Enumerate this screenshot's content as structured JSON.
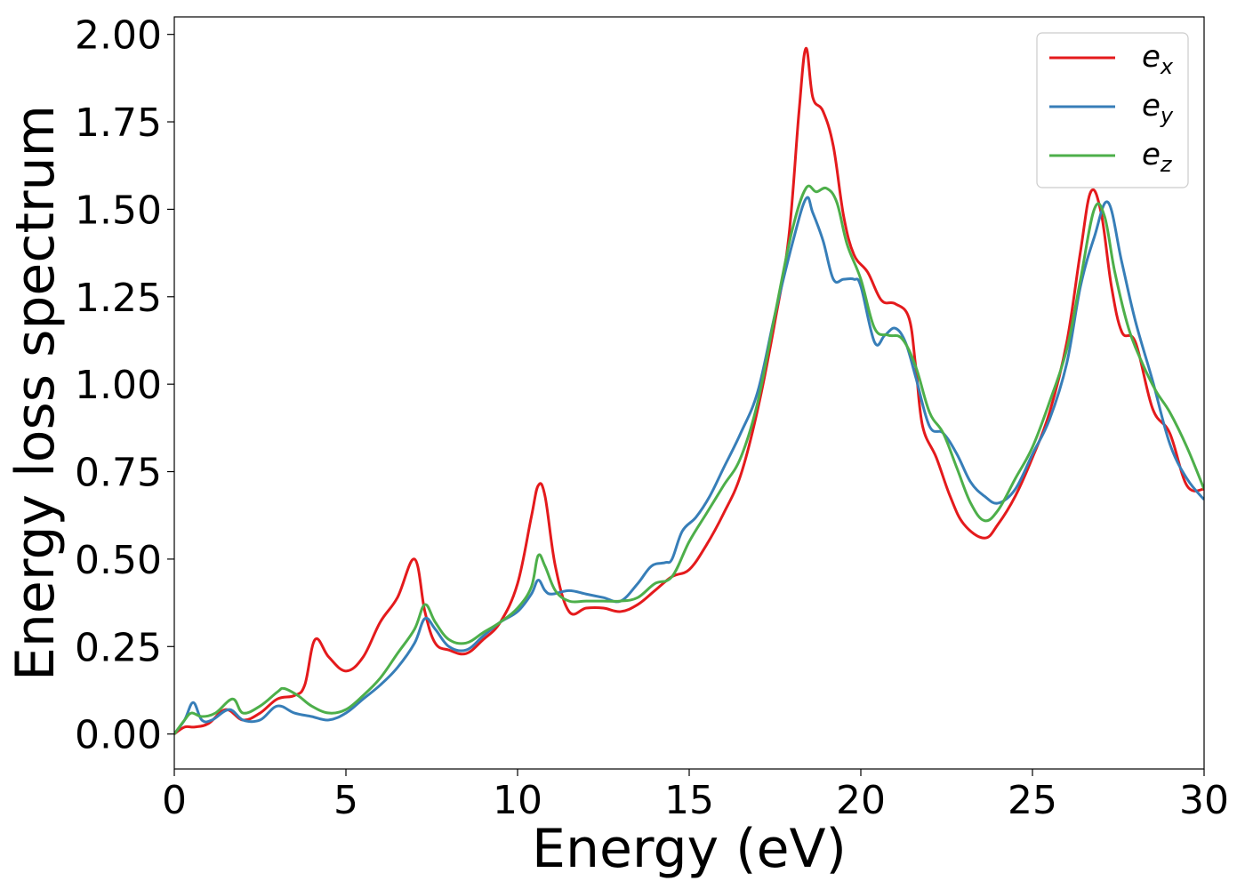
{
  "chart_data": {
    "type": "line",
    "title": "",
    "xlabel": "Energy (eV)",
    "ylabel": "Energy loss spectrum",
    "xlim": [
      0,
      30
    ],
    "ylim": [
      -0.1,
      2.05
    ],
    "xticks": [
      0,
      5,
      10,
      15,
      20,
      25,
      30
    ],
    "xtick_labels": [
      "0",
      "5",
      "10",
      "15",
      "20",
      "25",
      "30"
    ],
    "yticks": [
      0.0,
      0.25,
      0.5,
      0.75,
      1.0,
      1.25,
      1.5,
      1.75,
      2.0
    ],
    "ytick_labels": [
      "0.00",
      "0.25",
      "0.50",
      "0.75",
      "1.00",
      "1.25",
      "1.50",
      "1.75",
      "2.00"
    ],
    "grid": false,
    "legend_position": "top-right",
    "series": [
      {
        "name": "e_x",
        "legend_base": "e",
        "legend_sub": "x",
        "color": "#e41a1c",
        "x": [
          0,
          0.3,
          0.6,
          1.0,
          1.5,
          2.0,
          2.5,
          3.0,
          3.5,
          3.8,
          4.1,
          4.5,
          5.0,
          5.5,
          6.0,
          6.5,
          7.0,
          7.3,
          7.6,
          8.0,
          8.5,
          9.0,
          9.5,
          10.0,
          10.4,
          10.6,
          10.8,
          11.1,
          11.5,
          12.0,
          12.5,
          13.0,
          13.5,
          14.0,
          14.5,
          15.0,
          15.5,
          16.0,
          16.5,
          17.0,
          17.5,
          17.9,
          18.2,
          18.4,
          18.6,
          18.9,
          19.2,
          19.5,
          19.8,
          20.2,
          20.6,
          21.0,
          21.4,
          21.6,
          21.8,
          22.2,
          22.6,
          23.0,
          23.6,
          24.0,
          24.5,
          25.0,
          25.5,
          26.0,
          26.4,
          26.7,
          27.0,
          27.3,
          27.6,
          28.0,
          28.5,
          29.0,
          29.5,
          30.0
        ],
        "y": [
          0.0,
          0.02,
          0.02,
          0.03,
          0.07,
          0.04,
          0.06,
          0.1,
          0.11,
          0.14,
          0.27,
          0.22,
          0.18,
          0.22,
          0.32,
          0.39,
          0.5,
          0.35,
          0.26,
          0.24,
          0.23,
          0.27,
          0.32,
          0.43,
          0.62,
          0.71,
          0.68,
          0.48,
          0.35,
          0.36,
          0.36,
          0.35,
          0.37,
          0.41,
          0.45,
          0.47,
          0.54,
          0.63,
          0.74,
          0.93,
          1.18,
          1.42,
          1.78,
          1.96,
          1.82,
          1.78,
          1.68,
          1.48,
          1.37,
          1.32,
          1.24,
          1.23,
          1.19,
          1.05,
          0.88,
          0.79,
          0.68,
          0.6,
          0.56,
          0.6,
          0.68,
          0.79,
          0.92,
          1.12,
          1.38,
          1.55,
          1.49,
          1.28,
          1.15,
          1.12,
          0.93,
          0.86,
          0.71,
          0.7
        ]
      },
      {
        "name": "e_y",
        "legend_base": "e",
        "legend_sub": "y",
        "color": "#377eb8",
        "x": [
          0,
          0.3,
          0.55,
          0.8,
          1.1,
          1.6,
          2.0,
          2.5,
          3.0,
          3.5,
          4.0,
          4.5,
          5.0,
          5.5,
          6.0,
          6.5,
          7.0,
          7.3,
          7.6,
          8.0,
          8.5,
          9.0,
          9.5,
          10.0,
          10.4,
          10.6,
          10.8,
          11.0,
          11.5,
          12.0,
          12.5,
          13.0,
          13.5,
          13.9,
          14.3,
          14.5,
          14.8,
          15.2,
          15.6,
          16.0,
          16.5,
          17.0,
          17.5,
          18.0,
          18.4,
          18.6,
          18.9,
          19.2,
          19.5,
          19.8,
          20.0,
          20.4,
          20.7,
          21.0,
          21.3,
          21.6,
          22.0,
          22.4,
          22.8,
          23.2,
          23.6,
          24.0,
          24.5,
          25.0,
          25.5,
          26.0,
          26.4,
          26.8,
          27.2,
          27.6,
          28.0,
          28.5,
          29.0,
          29.5,
          30.0
        ],
        "y": [
          0.0,
          0.04,
          0.09,
          0.04,
          0.04,
          0.07,
          0.04,
          0.04,
          0.08,
          0.06,
          0.05,
          0.04,
          0.06,
          0.1,
          0.14,
          0.19,
          0.26,
          0.33,
          0.3,
          0.25,
          0.24,
          0.28,
          0.32,
          0.35,
          0.4,
          0.44,
          0.41,
          0.4,
          0.41,
          0.4,
          0.39,
          0.38,
          0.43,
          0.48,
          0.49,
          0.5,
          0.58,
          0.62,
          0.68,
          0.76,
          0.86,
          0.98,
          1.2,
          1.4,
          1.53,
          1.49,
          1.41,
          1.3,
          1.3,
          1.3,
          1.28,
          1.12,
          1.14,
          1.16,
          1.12,
          1.02,
          0.88,
          0.86,
          0.8,
          0.72,
          0.68,
          0.66,
          0.7,
          0.8,
          0.9,
          1.06,
          1.28,
          1.42,
          1.52,
          1.35,
          1.18,
          1.01,
          0.83,
          0.73,
          0.67
        ]
      },
      {
        "name": "e_z",
        "legend_base": "e",
        "legend_sub": "z",
        "color": "#4daf4a",
        "x": [
          0,
          0.3,
          0.5,
          0.8,
          1.2,
          1.7,
          2.0,
          2.5,
          3.0,
          3.2,
          3.6,
          4.0,
          4.5,
          5.0,
          5.5,
          6.0,
          6.5,
          7.0,
          7.3,
          7.6,
          8.0,
          8.5,
          9.0,
          9.5,
          10.0,
          10.4,
          10.6,
          10.8,
          11.1,
          11.5,
          12.0,
          12.5,
          13.0,
          13.5,
          14.0,
          14.5,
          15.0,
          15.5,
          16.0,
          16.5,
          17.0,
          17.5,
          18.0,
          18.4,
          18.7,
          19.0,
          19.3,
          19.6,
          20.0,
          20.4,
          20.8,
          21.2,
          21.6,
          22.0,
          22.4,
          22.8,
          23.2,
          23.6,
          24.0,
          24.5,
          25.0,
          25.5,
          26.0,
          26.4,
          26.8,
          27.1,
          27.4,
          27.8,
          28.2,
          28.6,
          29.0,
          29.5,
          30.0
        ],
        "y": [
          0.0,
          0.04,
          0.06,
          0.05,
          0.06,
          0.1,
          0.06,
          0.08,
          0.12,
          0.13,
          0.11,
          0.08,
          0.06,
          0.07,
          0.11,
          0.16,
          0.23,
          0.3,
          0.37,
          0.32,
          0.27,
          0.26,
          0.29,
          0.32,
          0.36,
          0.42,
          0.51,
          0.48,
          0.41,
          0.38,
          0.38,
          0.38,
          0.38,
          0.39,
          0.43,
          0.45,
          0.55,
          0.63,
          0.71,
          0.79,
          0.95,
          1.2,
          1.44,
          1.56,
          1.55,
          1.56,
          1.52,
          1.4,
          1.3,
          1.16,
          1.14,
          1.13,
          1.05,
          0.92,
          0.86,
          0.76,
          0.66,
          0.61,
          0.64,
          0.73,
          0.82,
          0.95,
          1.1,
          1.3,
          1.5,
          1.48,
          1.32,
          1.16,
          1.06,
          0.98,
          0.92,
          0.82,
          0.7
        ]
      }
    ]
  }
}
